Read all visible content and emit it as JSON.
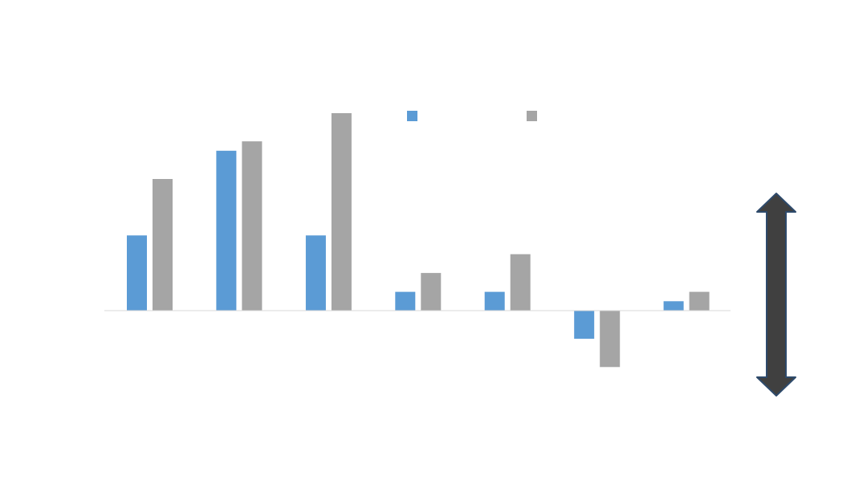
{
  "chart_data": {
    "type": "bar",
    "categories": [
      "",
      "",
      "",
      "",
      "",
      "",
      ""
    ],
    "series": [
      {
        "color": "#5b9bd5",
        "values": [
          4,
          8.5,
          4,
          1,
          1,
          -1.5,
          0.5
        ]
      },
      {
        "color": "#a5a5a5",
        "values": [
          7,
          9,
          10.5,
          2,
          3,
          -3,
          1
        ]
      }
    ],
    "ylim": [
      -3,
      10.5
    ],
    "grid": false,
    "legend": "top-center",
    "colors": {
      "axis_line": "#d9d9d9",
      "arrow_fill": "#404040",
      "arrow_stroke": "#2e4a6b"
    }
  }
}
